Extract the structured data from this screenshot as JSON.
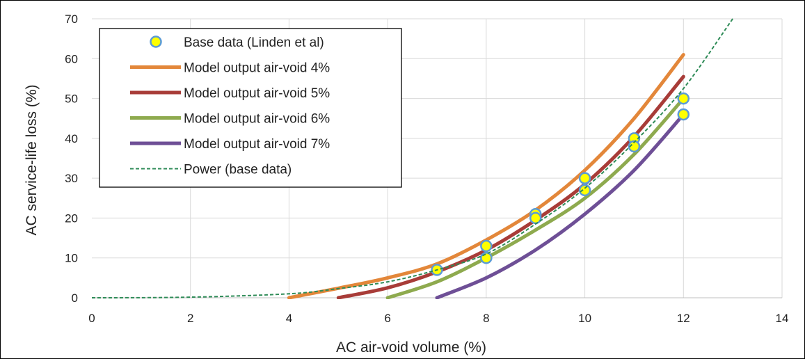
{
  "chart_data": {
    "type": "scatter",
    "title": "",
    "xlabel": "AC air-void volume (%)",
    "ylabel": "AC service-life loss (%)",
    "xlim": [
      0,
      14
    ],
    "ylim": [
      0,
      70
    ],
    "xticks": [
      0,
      2,
      4,
      6,
      8,
      10,
      12,
      14
    ],
    "yticks": [
      0,
      10,
      20,
      30,
      40,
      50,
      60,
      70
    ],
    "grid": true,
    "legend_position": "top-left",
    "series": [
      {
        "name": "Base data (Linden et al)",
        "kind": "markers",
        "color": "#FFFF00",
        "edge_color": "#5B9BD5",
        "points": [
          [
            7,
            7
          ],
          [
            8,
            13
          ],
          [
            8,
            10
          ],
          [
            9,
            21
          ],
          [
            9,
            20
          ],
          [
            10,
            30
          ],
          [
            10,
            27
          ],
          [
            11,
            40
          ],
          [
            11,
            38
          ],
          [
            12,
            50
          ],
          [
            12,
            46
          ]
        ]
      },
      {
        "name": "Model output air-void 4%",
        "kind": "line",
        "color": "#E3873A",
        "points": [
          [
            4,
            0
          ],
          [
            5,
            2.4
          ],
          [
            6,
            5
          ],
          [
            7,
            8.5
          ],
          [
            8,
            14.5
          ],
          [
            9,
            22
          ],
          [
            10,
            32
          ],
          [
            11,
            45
          ],
          [
            12,
            61
          ]
        ]
      },
      {
        "name": "Model output air-void 5%",
        "kind": "line",
        "color": "#A83C38",
        "points": [
          [
            5,
            0
          ],
          [
            6,
            2.5
          ],
          [
            7,
            6.5
          ],
          [
            8,
            12
          ],
          [
            9,
            19.5
          ],
          [
            10,
            28.5
          ],
          [
            11,
            40.5
          ],
          [
            12,
            55.5
          ]
        ]
      },
      {
        "name": "Model output air-void 6%",
        "kind": "line",
        "color": "#8EAA4E",
        "points": [
          [
            6,
            0
          ],
          [
            7,
            4
          ],
          [
            8,
            10
          ],
          [
            9,
            17
          ],
          [
            10,
            25
          ],
          [
            11,
            36
          ],
          [
            12,
            50
          ]
        ]
      },
      {
        "name": "Model output air-void 7%",
        "kind": "line",
        "color": "#6E4F96",
        "points": [
          [
            7,
            0
          ],
          [
            8,
            5
          ],
          [
            9,
            12
          ],
          [
            10,
            21
          ],
          [
            11,
            32
          ],
          [
            12,
            46
          ]
        ]
      },
      {
        "name": "Power (base data)",
        "kind": "dashed",
        "color": "#2E8B57",
        "points": [
          [
            0,
            0
          ],
          [
            2,
            0.15
          ],
          [
            4,
            1
          ],
          [
            5,
            2.3
          ],
          [
            6,
            4
          ],
          [
            7,
            7
          ],
          [
            8,
            11
          ],
          [
            9,
            18.5
          ],
          [
            10,
            27.5
          ],
          [
            11,
            39
          ],
          [
            12,
            52.5
          ],
          [
            13,
            70
          ]
        ]
      }
    ]
  }
}
